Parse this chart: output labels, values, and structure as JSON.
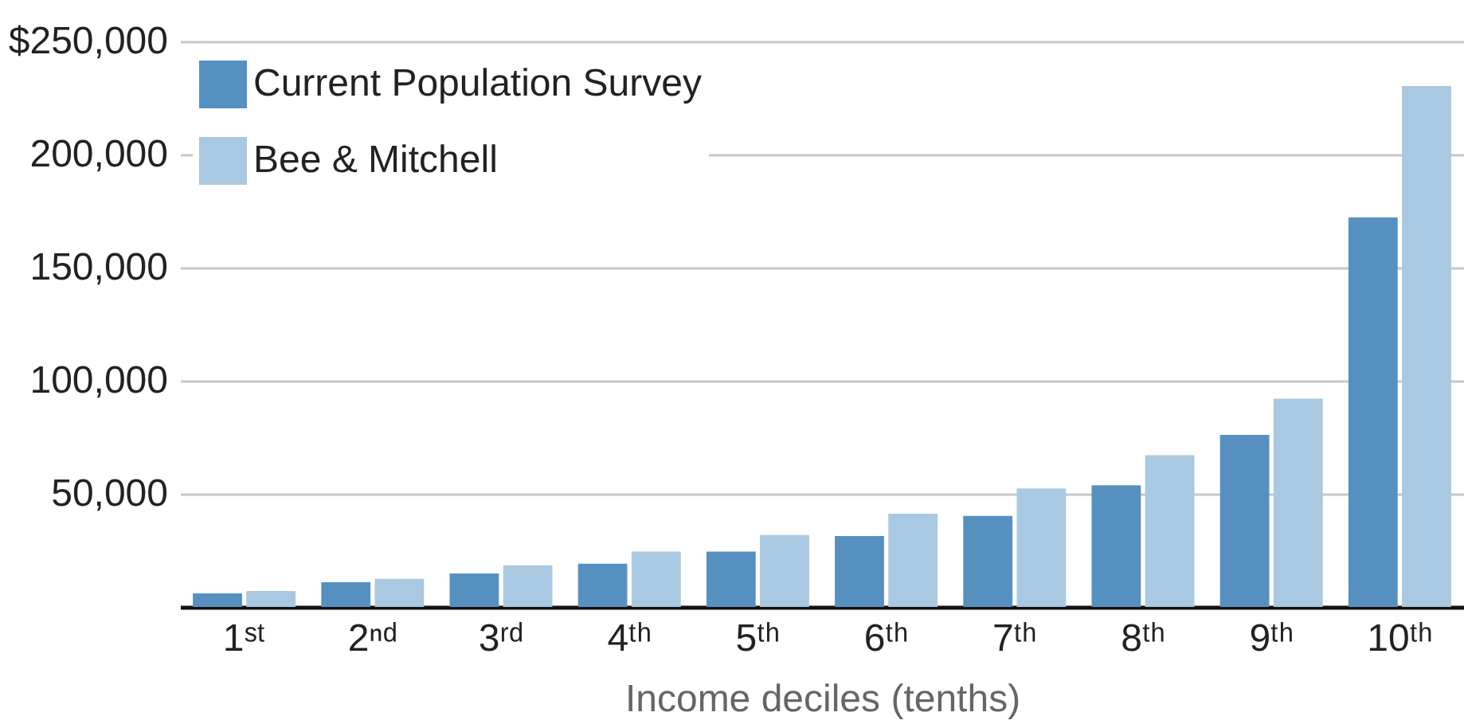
{
  "chart_data": {
    "type": "bar",
    "xlabel": "Income deciles (tenths)",
    "categories": [
      "1ˢᵗ",
      "2ⁿᵈ",
      "3ʳᵈ",
      "4ᵗʰ",
      "5ᵗʰ",
      "6ᵗʰ",
      "7ᵗʰ",
      "8ᵗʰ",
      "9ᵗʰ",
      "10ᵗʰ"
    ],
    "series": [
      {
        "name": "Current Population Survey",
        "color": "#5690c0",
        "values": [
          6000,
          10900,
          14800,
          19100,
          24500,
          31300,
          40200,
          53800,
          76100,
          172200
        ]
      },
      {
        "name": "Bee & Mitchell",
        "color": "#a9c8e2",
        "values": [
          7000,
          12400,
          18400,
          24500,
          31800,
          41200,
          52400,
          67100,
          92100,
          230300
        ]
      }
    ],
    "ylim": [
      0,
      250000
    ],
    "yticks": [
      {
        "value": 0,
        "label": null
      },
      {
        "value": 50000,
        "label": "50,000"
      },
      {
        "value": 100000,
        "label": "100,000"
      },
      {
        "value": 150000,
        "label": "150,000"
      },
      {
        "value": 200000,
        "label": "200,000"
      },
      {
        "value": 250000,
        "label": "$250,000"
      }
    ],
    "grid": "y",
    "legend": "top left"
  }
}
